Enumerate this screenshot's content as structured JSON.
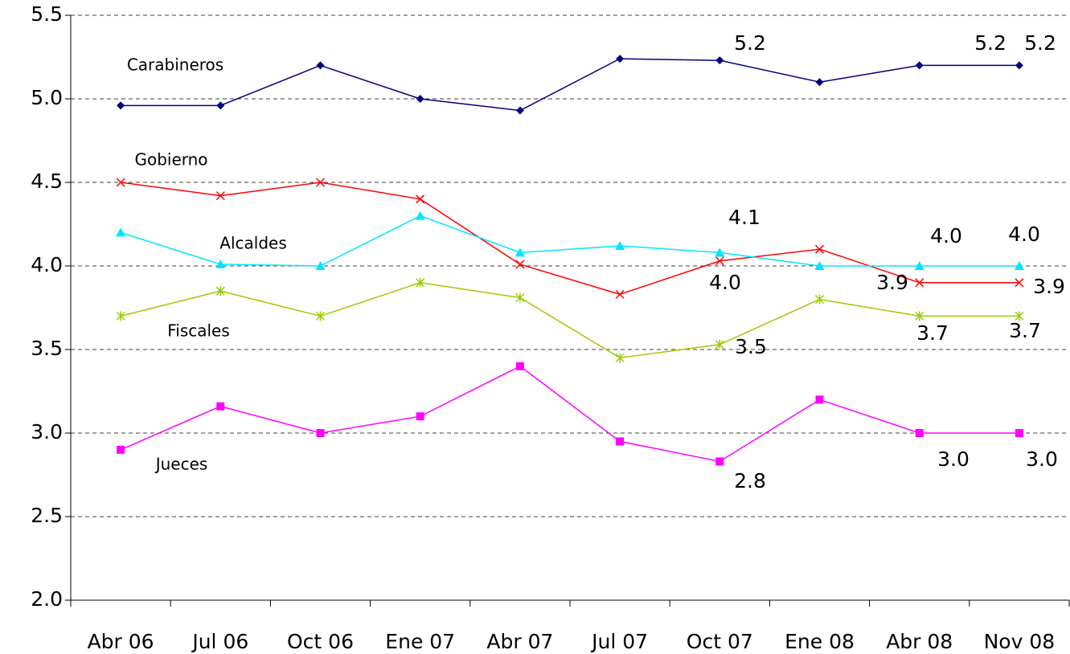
{
  "chart_data": {
    "type": "line",
    "categories": [
      "Abr 06",
      "Jul 06",
      "Oct 06",
      "Ene 07",
      "Abr 07",
      "Jul 07",
      "Oct 07",
      "Ene 08",
      "Abr 08",
      "Nov 08"
    ],
    "series": [
      {
        "name": "Carabineros",
        "color": "#000080",
        "marker": "diamond",
        "values": [
          4.96,
          4.96,
          5.2,
          5.0,
          4.93,
          5.24,
          5.23,
          5.1,
          5.2,
          5.2
        ],
        "value_labels": [
          null,
          null,
          null,
          null,
          null,
          null,
          "5.2",
          null,
          "5.2",
          "5.2"
        ]
      },
      {
        "name": "Gobierno",
        "color": "#ff0000",
        "marker": "x",
        "values": [
          4.5,
          4.42,
          4.5,
          4.4,
          4.01,
          3.83,
          4.03,
          4.1,
          3.9,
          3.9
        ],
        "value_labels": [
          null,
          null,
          null,
          null,
          null,
          null,
          "4.0",
          null,
          "3.9",
          "3.9"
        ]
      },
      {
        "name": "Alcaldes",
        "color": "#00e5ff",
        "marker": "triangle",
        "values": [
          4.2,
          4.01,
          4.0,
          4.3,
          4.08,
          4.12,
          4.08,
          4.0,
          4.0,
          4.0
        ],
        "value_labels": [
          null,
          null,
          null,
          null,
          null,
          null,
          "4.1",
          null,
          "4.0",
          "4.0"
        ]
      },
      {
        "name": "Fiscales",
        "color": "#99cc00",
        "marker": "star",
        "values": [
          3.7,
          3.85,
          3.7,
          3.9,
          3.81,
          3.45,
          3.53,
          3.8,
          3.7,
          3.7
        ],
        "value_labels": [
          null,
          null,
          null,
          null,
          null,
          null,
          "3.5",
          null,
          "3.7",
          "3.7"
        ]
      },
      {
        "name": "Jueces",
        "color": "#ff00ff",
        "marker": "square",
        "values": [
          2.9,
          3.16,
          3.0,
          3.1,
          3.4,
          2.95,
          2.83,
          3.2,
          3.0,
          3.0
        ],
        "value_labels": [
          null,
          null,
          null,
          null,
          null,
          null,
          "2.8",
          null,
          "3.0",
          "3.0"
        ]
      }
    ],
    "ylim": [
      2.0,
      5.5
    ],
    "yticks": [
      {
        "value": 2.0,
        "label": "2.0"
      },
      {
        "value": 2.5,
        "label": "2.5"
      },
      {
        "value": 3.0,
        "label": "3.0"
      },
      {
        "value": 3.5,
        "label": "3.5"
      },
      {
        "value": 4.0,
        "label": "4.0"
      },
      {
        "value": 4.5,
        "label": "4.5"
      },
      {
        "value": 5.0,
        "label": "5.0"
      },
      {
        "value": 5.5,
        "label": "5.5"
      }
    ],
    "grid": true
  }
}
